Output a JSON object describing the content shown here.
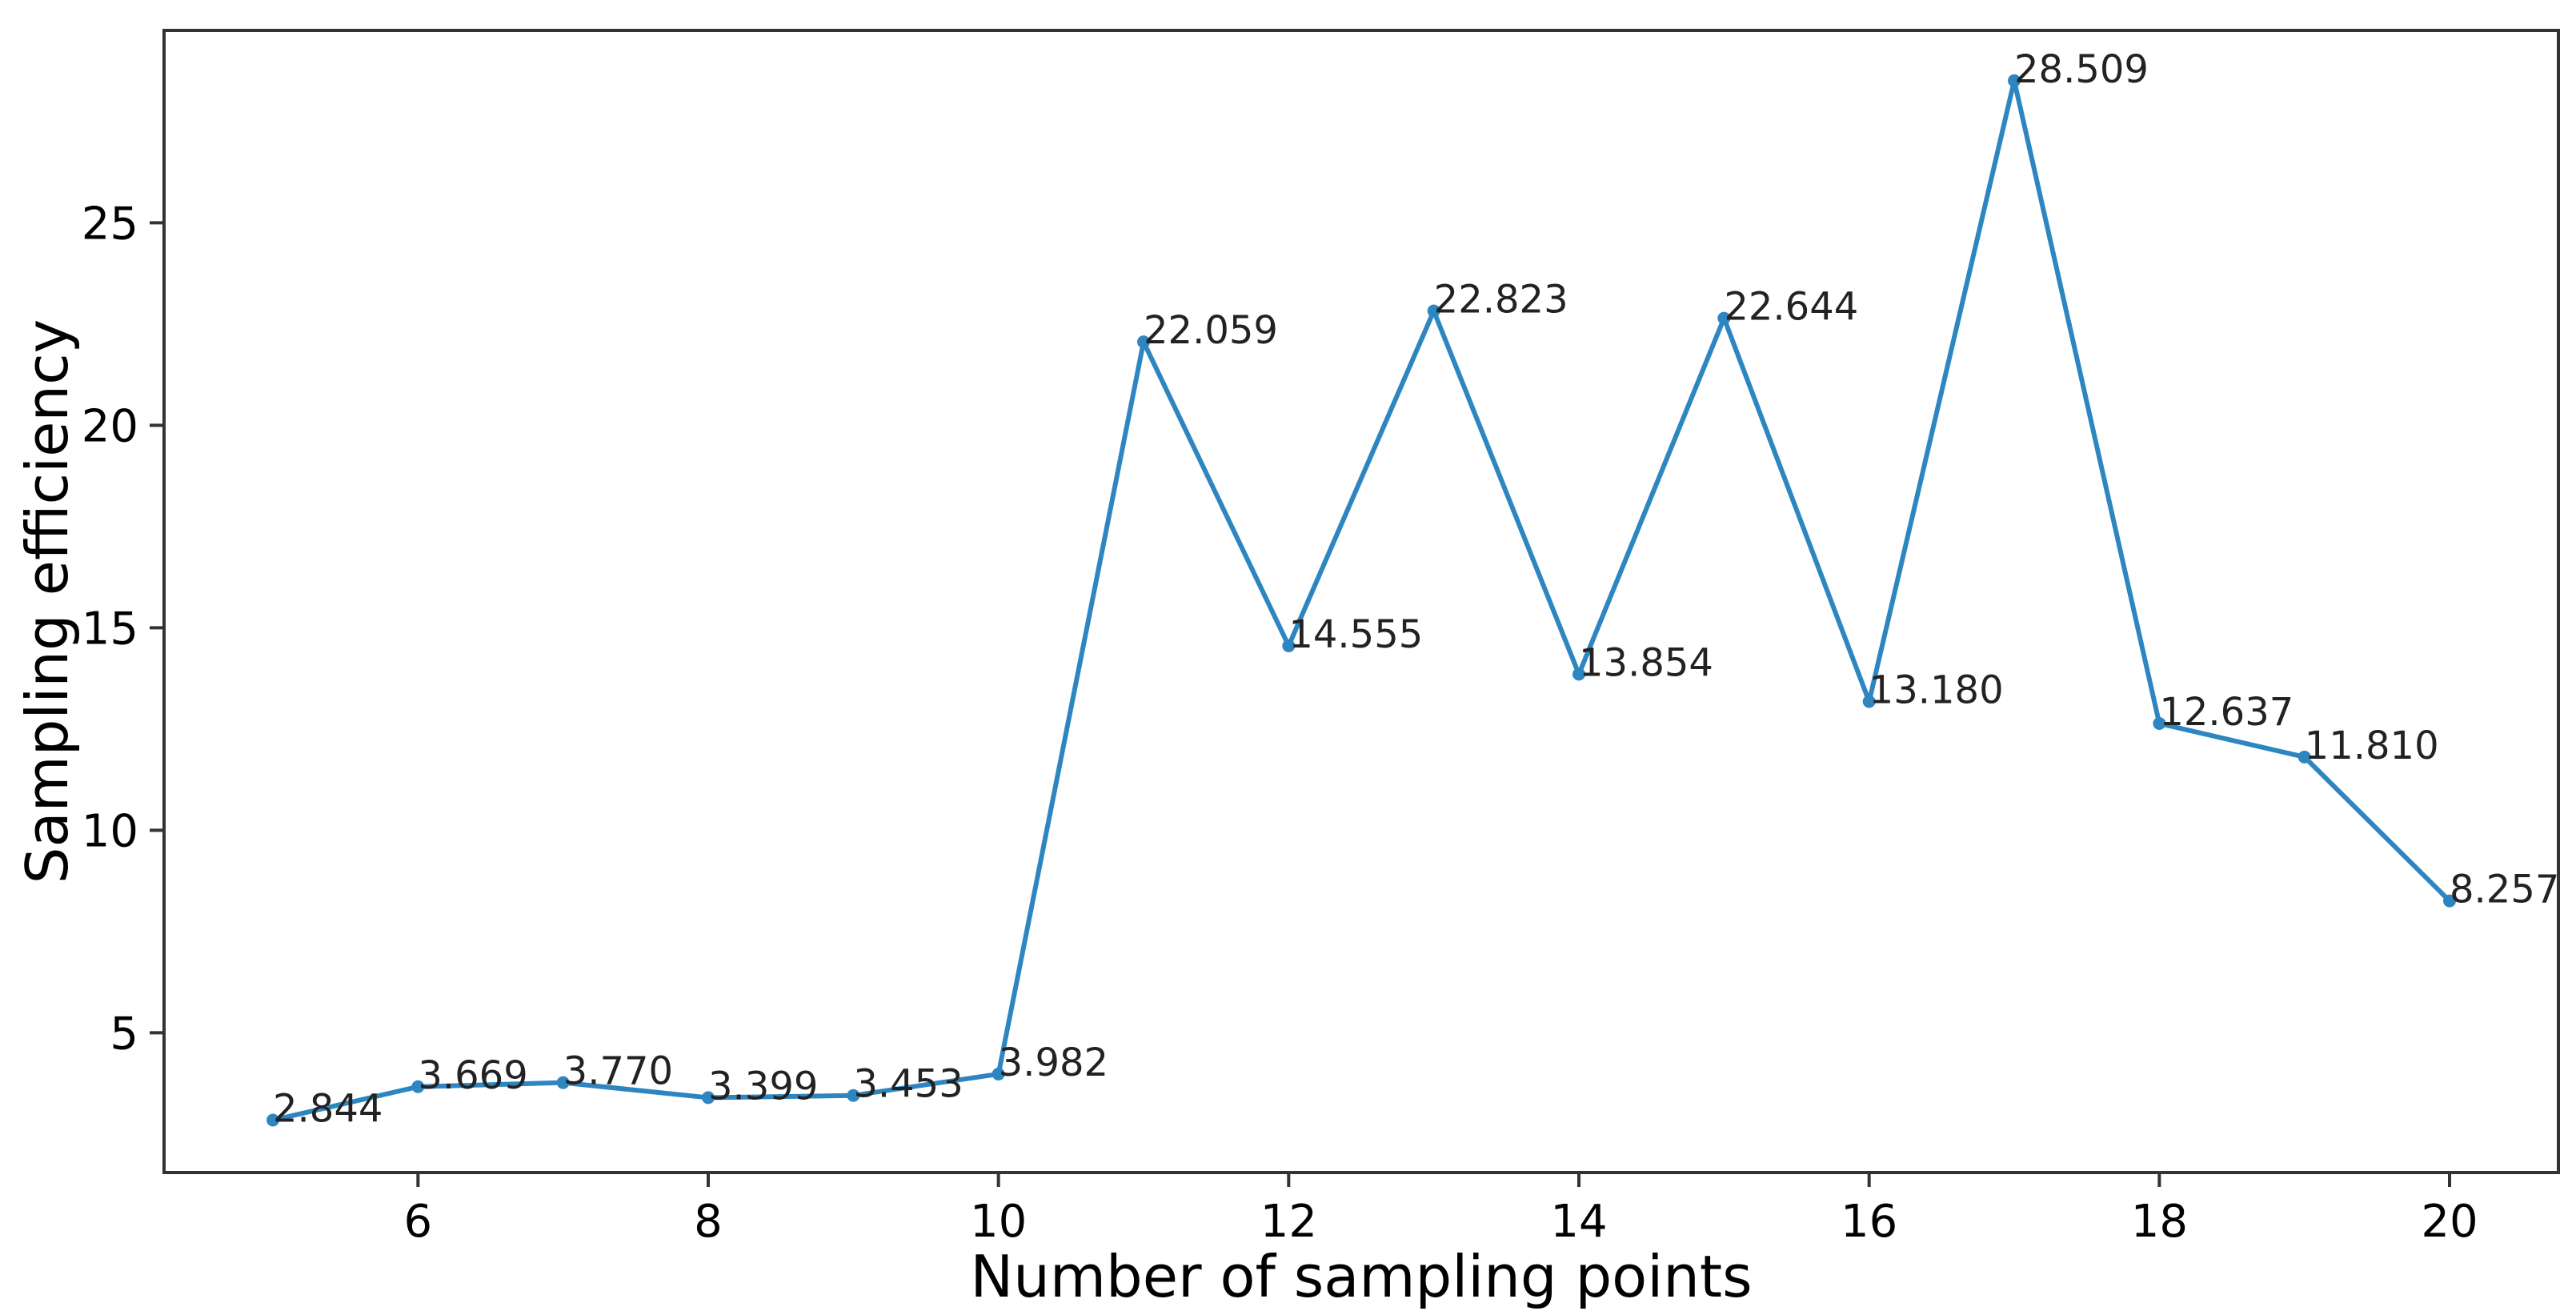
{
  "chart_data": {
    "type": "line",
    "xlabel": "Number of sampling points",
    "ylabel": "Sampling efficiency",
    "xlim": [
      4.25,
      20.75
    ],
    "ylim": [
      1.55,
      29.75
    ],
    "xticks": [
      6,
      8,
      10,
      12,
      14,
      16,
      18,
      20
    ],
    "yticks": [
      5,
      10,
      15,
      20,
      25
    ],
    "grid": false,
    "series": [
      {
        "x": [
          5,
          6,
          7,
          8,
          9,
          10,
          11,
          12,
          13,
          14,
          15,
          16,
          17,
          18,
          19,
          20
        ],
        "values": [
          2.844,
          3.669,
          3.77,
          3.399,
          3.453,
          3.982,
          22.059,
          14.555,
          22.823,
          13.854,
          22.644,
          13.18,
          28.509,
          12.637,
          11.81,
          8.257
        ],
        "labels": [
          "2.844",
          "3.669",
          "3.770",
          "3.399",
          "3.453",
          "3.982",
          "22.059",
          "14.555",
          "22.823",
          "13.854",
          "22.644",
          "13.180",
          "28.509",
          "12.637",
          "11.810",
          "8.257"
        ],
        "color": "#2e86c1"
      }
    ]
  }
}
